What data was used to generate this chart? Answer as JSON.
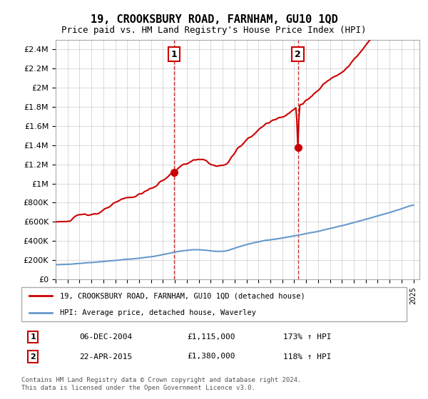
{
  "title": "19, CROOKSBURY ROAD, FARNHAM, GU10 1QD",
  "subtitle": "Price paid vs. HM Land Registry's House Price Index (HPI)",
  "legend_line1": "19, CROOKSBURY ROAD, FARNHAM, GU10 1QD (detached house)",
  "legend_line2": "HPI: Average price, detached house, Waverley",
  "sale1_label": "1",
  "sale1_date": "06-DEC-2004",
  "sale1_price": "£1,115,000",
  "sale1_hpi": "173% ↑ HPI",
  "sale1_year": 2004.92,
  "sale1_value": 1115000,
  "sale2_label": "2",
  "sale2_date": "22-APR-2015",
  "sale2_price": "£1,380,000",
  "sale2_hpi": "118% ↑ HPI",
  "sale2_year": 2015.31,
  "sale2_value": 1380000,
  "hpi_color": "#6699cc",
  "price_color": "#cc0000",
  "marker_color": "#cc0000",
  "vline_color": "#cc3333",
  "ylim_min": 0,
  "ylim_max": 2500000,
  "yticks": [
    0,
    200000,
    400000,
    600000,
    800000,
    1000000,
    1200000,
    1400000,
    1600000,
    1800000,
    2000000,
    2200000,
    2400000
  ],
  "footer": "Contains HM Land Registry data © Crown copyright and database right 2024.\nThis data is licensed under the Open Government Licence v3.0.",
  "background_color": "#ffffff",
  "grid_color": "#cccccc"
}
